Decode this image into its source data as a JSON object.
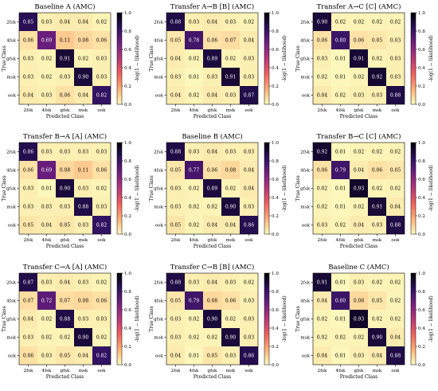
{
  "chart_data": [
    {
      "type": "heatmap",
      "title": "Baseline A (AMC)",
      "xlabel": "Predicted Class",
      "ylabel": "True Class",
      "x_categories": [
        "2fsk",
        "4fsk",
        "gfsk",
        "msk",
        "ook"
      ],
      "y_categories": [
        "2fsk",
        "4fsk",
        "gfsk",
        "msk",
        "ook"
      ],
      "values": [
        [
          0.85,
          0.03,
          0.04,
          0.04,
          0.02
        ],
        [
          0.06,
          0.69,
          0.11,
          0.08,
          0.06
        ],
        [
          0.03,
          0.02,
          0.91,
          0.02,
          0.03
        ],
        [
          0.03,
          0.02,
          0.03,
          0.9,
          0.03
        ],
        [
          0.04,
          0.03,
          0.06,
          0.04,
          0.82
        ]
      ],
      "colorbar_label": "-log(1 − likelihood)",
      "colorbar_ticks": [
        "0.0",
        "0.2",
        "0.4",
        "0.6",
        "0.8",
        "1.0"
      ],
      "vlim": [
        0,
        1
      ]
    },
    {
      "type": "heatmap",
      "title": "Transfer A→B [B] (AMC)",
      "xlabel": "Predicted Class",
      "ylabel": "True Class",
      "x_categories": [
        "2fsk",
        "4fsk",
        "gfsk",
        "msk",
        "ook"
      ],
      "y_categories": [
        "2fsk",
        "4fsk",
        "gfsk",
        "msk",
        "ook"
      ],
      "values": [
        [
          0.88,
          0.03,
          0.04,
          0.03,
          0.02
        ],
        [
          0.05,
          0.78,
          0.06,
          0.07,
          0.04
        ],
        [
          0.04,
          0.02,
          0.89,
          0.02,
          0.03
        ],
        [
          0.03,
          0.01,
          0.03,
          0.91,
          0.03
        ],
        [
          0.04,
          0.02,
          0.04,
          0.03,
          0.87
        ]
      ],
      "colorbar_label": "-log(1 − likelihood)",
      "colorbar_ticks": [
        "0.0",
        "0.2",
        "0.4",
        "0.6",
        "0.8",
        "1.0"
      ],
      "vlim": [
        0,
        1
      ]
    },
    {
      "type": "heatmap",
      "title": "Transfer A→C [C] (AMC)",
      "xlabel": "Predicted Class",
      "ylabel": "True Class",
      "x_categories": [
        "2fsk",
        "4fsk",
        "gfsk",
        "msk",
        "ook"
      ],
      "y_categories": [
        "2fsk",
        "4fsk",
        "gfsk",
        "msk",
        "ook"
      ],
      "values": [
        [
          0.9,
          0.02,
          0.02,
          0.02,
          0.02
        ],
        [
          0.06,
          0.8,
          0.06,
          0.05,
          0.03
        ],
        [
          0.03,
          0.01,
          0.91,
          0.02,
          0.03
        ],
        [
          0.02,
          0.01,
          0.02,
          0.92,
          0.03
        ],
        [
          0.04,
          0.02,
          0.03,
          0.03,
          0.88
        ]
      ],
      "colorbar_label": "-log(1 − likelihood)",
      "colorbar_ticks": [
        "0.0",
        "0.2",
        "0.4",
        "0.6",
        "0.8",
        "1.0"
      ],
      "vlim": [
        0,
        1
      ]
    },
    {
      "type": "heatmap",
      "title": "Transfer B→A [A] (AMC)",
      "xlabel": "Predicted Class",
      "ylabel": "True Class",
      "x_categories": [
        "2fsk",
        "4fsk",
        "gfsk",
        "msk",
        "ook"
      ],
      "y_categories": [
        "2fsk",
        "4fsk",
        "gfsk",
        "msk",
        "ook"
      ],
      "values": [
        [
          0.86,
          0.03,
          0.03,
          0.03,
          0.03
        ],
        [
          0.06,
          0.69,
          0.08,
          0.11,
          0.06
        ],
        [
          0.03,
          0.01,
          0.9,
          0.03,
          0.02
        ],
        [
          0.03,
          0.03,
          0.03,
          0.88,
          0.03
        ],
        [
          0.05,
          0.04,
          0.05,
          0.03,
          0.82
        ]
      ],
      "colorbar_label": "-log(1 − likelihood)",
      "colorbar_ticks": [
        "0.0",
        "0.2",
        "0.4",
        "0.6",
        "0.8",
        "1.0"
      ],
      "vlim": [
        0,
        1
      ]
    },
    {
      "type": "heatmap",
      "title": "Baseline B (AMC)",
      "xlabel": "Predicted Class",
      "ylabel": "True Class",
      "x_categories": [
        "2fsk",
        "4fsk",
        "gfsk",
        "msk",
        "ook"
      ],
      "y_categories": [
        "2fsk",
        "4fsk",
        "gfsk",
        "msk",
        "ook"
      ],
      "values": [
        [
          0.88,
          0.03,
          0.04,
          0.03,
          0.03
        ],
        [
          0.05,
          0.77,
          0.06,
          0.08,
          0.04
        ],
        [
          0.03,
          0.02,
          0.89,
          0.02,
          0.04
        ],
        [
          0.03,
          0.02,
          0.02,
          0.9,
          0.03
        ],
        [
          0.05,
          0.02,
          0.04,
          0.04,
          0.86
        ]
      ],
      "colorbar_label": "-log(1 − likelihood)",
      "colorbar_ticks": [
        "0.0",
        "0.2",
        "0.4",
        "0.6",
        "0.8",
        "1.0"
      ],
      "vlim": [
        0,
        1
      ]
    },
    {
      "type": "heatmap",
      "title": "Transfer B→C [C] (AMC)",
      "xlabel": "Predicted Class",
      "ylabel": "True Class",
      "x_categories": [
        "2fsk",
        "4fsk",
        "gfsk",
        "msk",
        "ook"
      ],
      "y_categories": [
        "2fsk",
        "4fsk",
        "gfsk",
        "msk",
        "ook"
      ],
      "values": [
        [
          0.92,
          0.01,
          0.02,
          0.02,
          0.02
        ],
        [
          0.06,
          0.79,
          0.04,
          0.06,
          0.05
        ],
        [
          0.02,
          0.01,
          0.93,
          0.02,
          0.02
        ],
        [
          0.02,
          0.01,
          0.02,
          0.91,
          0.04
        ],
        [
          0.03,
          0.02,
          0.04,
          0.03,
          0.88
        ]
      ],
      "colorbar_label": "-log(1 − likelihood)",
      "colorbar_ticks": [
        "0.0",
        "0.2",
        "0.4",
        "0.6",
        "0.8",
        "1.0"
      ],
      "vlim": [
        0,
        1
      ]
    },
    {
      "type": "heatmap",
      "title": "Transfer C→A [A] (AMC)",
      "xlabel": "Predicted Class",
      "ylabel": "True Class",
      "x_categories": [
        "2fsk",
        "4fsk",
        "gfsk",
        "msk",
        "ook"
      ],
      "y_categories": [
        "2fsk",
        "4fsk",
        "gfsk",
        "msk",
        "ook"
      ],
      "values": [
        [
          0.87,
          0.03,
          0.04,
          0.03,
          0.02
        ],
        [
          0.07,
          0.72,
          0.07,
          0.08,
          0.06
        ],
        [
          0.04,
          0.02,
          0.88,
          0.03,
          0.03
        ],
        [
          0.03,
          0.02,
          0.02,
          0.9,
          0.02
        ],
        [
          0.06,
          0.03,
          0.05,
          0.04,
          0.82
        ]
      ],
      "colorbar_label": "-log(1 − likelihood)",
      "colorbar_ticks": [
        "0.0",
        "0.2",
        "0.4",
        "0.6",
        "0.8",
        "1.0"
      ],
      "vlim": [
        0,
        1
      ]
    },
    {
      "type": "heatmap",
      "title": "Transfer C→B [B] (AMC)",
      "xlabel": "Predicted Class",
      "ylabel": "True Class",
      "x_categories": [
        "2fsk",
        "4fsk",
        "gfsk",
        "msk",
        "ook"
      ],
      "y_categories": [
        "2fsk",
        "4fsk",
        "gfsk",
        "msk",
        "ook"
      ],
      "values": [
        [
          0.88,
          0.03,
          0.04,
          0.03,
          0.02
        ],
        [
          0.05,
          0.79,
          0.08,
          0.06,
          0.03
        ],
        [
          0.03,
          0.02,
          0.9,
          0.02,
          0.03
        ],
        [
          0.03,
          0.02,
          0.02,
          0.9,
          0.03
        ],
        [
          0.04,
          0.01,
          0.05,
          0.03,
          0.86
        ]
      ],
      "colorbar_label": "-log(1 − likelihood)",
      "colorbar_ticks": [
        "0.0",
        "0.2",
        "0.4",
        "0.6",
        "0.8",
        "1.0"
      ],
      "vlim": [
        0,
        1
      ]
    },
    {
      "type": "heatmap",
      "title": "Baseline C (AMC)",
      "xlabel": "Predicted Class",
      "ylabel": "True Class",
      "x_categories": [
        "2fsk",
        "4fsk",
        "gfsk",
        "msk",
        "ook"
      ],
      "y_categories": [
        "2fsk",
        "4fsk",
        "gfsk",
        "msk",
        "ook"
      ],
      "values": [
        [
          0.91,
          0.01,
          0.03,
          0.02,
          0.02
        ],
        [
          0.04,
          0.8,
          0.08,
          0.05,
          0.02
        ],
        [
          0.02,
          0.01,
          0.93,
          0.02,
          0.02
        ],
        [
          0.02,
          0.02,
          0.02,
          0.9,
          0.04
        ],
        [
          0.04,
          0.01,
          0.03,
          0.04,
          0.88
        ]
      ],
      "colorbar_label": "-log(1 − likelihood)",
      "colorbar_ticks": [
        "0.0",
        "0.2",
        "0.4",
        "0.6",
        "0.8",
        "1.0"
      ],
      "vlim": [
        0,
        1
      ]
    }
  ],
  "colors": {
    "cmap_stops": [
      "#fcfdbf",
      "#feb078",
      "#f1605d",
      "#b73779",
      "#721f81",
      "#2c115f",
      "#000004"
    ],
    "text_dark": "#000000",
    "text_light": "#ffffff"
  }
}
